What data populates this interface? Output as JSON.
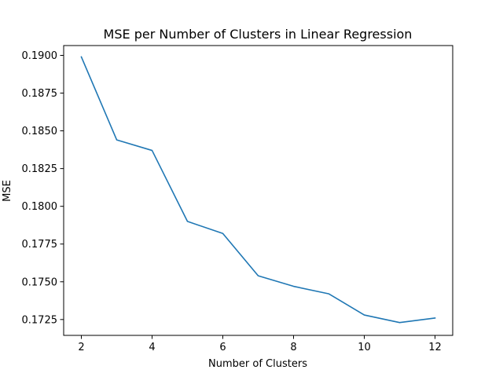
{
  "chart_data": {
    "type": "line",
    "title": "MSE per Number of Clusters in Linear Regression",
    "xlabel": "Number of Clusters",
    "ylabel": "MSE",
    "x": [
      2,
      3,
      4,
      5,
      6,
      7,
      8,
      9,
      10,
      11,
      12
    ],
    "series": [
      {
        "values": [
          0.1899,
          0.1844,
          0.1837,
          0.179,
          0.1782,
          0.1754,
          0.1747,
          0.1742,
          0.1728,
          0.1723,
          0.1726
        ],
        "color": "#1f77b4"
      }
    ],
    "xlim": [
      1.5,
      12.5
    ],
    "ylim": [
      0.17145,
      0.19065
    ],
    "xticks": [
      2,
      4,
      6,
      8,
      10,
      12
    ],
    "xtick_labels": [
      "2",
      "4",
      "6",
      "8",
      "10",
      "12"
    ],
    "yticks": [
      0.1725,
      0.175,
      0.1775,
      0.18,
      0.1825,
      0.185,
      0.1875,
      0.19
    ],
    "ytick_labels": [
      "0.1725",
      "0.1750",
      "0.1775",
      "0.1800",
      "0.1825",
      "0.1850",
      "0.1875",
      "0.1900"
    ],
    "grid": false,
    "legend": "none"
  }
}
